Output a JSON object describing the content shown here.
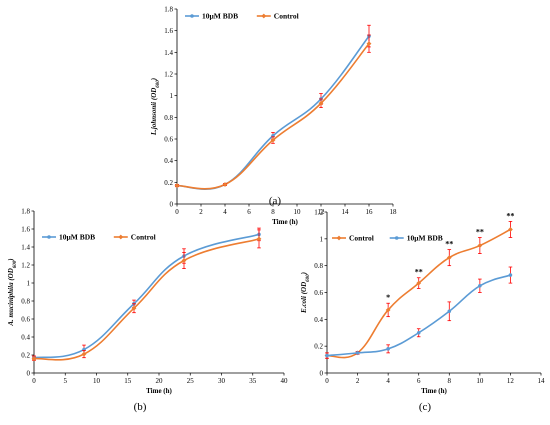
{
  "colors": {
    "bdb": "#5b9bd5",
    "control": "#ed7d31",
    "error": "#ff0000",
    "axis": "#000000"
  },
  "chart_data": [
    {
      "id": "a",
      "type": "line",
      "caption": "(a)",
      "xlabel": "Time (h)",
      "ylabel": "L.johnsonii (OD600)",
      "xlim": [
        0,
        18
      ],
      "ylim": [
        0,
        1.8
      ],
      "xticks": [
        "0",
        "2",
        "4",
        "6",
        "8",
        "10",
        "12",
        "14",
        "16",
        "18"
      ],
      "yticks": [
        "0",
        "0.2",
        "0.4",
        "0.6",
        "0.8",
        "1",
        "1.2",
        "1.4",
        "1.6",
        "1.8"
      ],
      "legend": "top-left",
      "x": [
        0,
        4,
        8,
        12,
        16
      ],
      "series": [
        {
          "name": "10μM BDB",
          "key": "bdb",
          "values": [
            0.17,
            0.18,
            0.63,
            0.97,
            1.55
          ],
          "err": [
            0.01,
            0.01,
            0.03,
            0.05,
            0.1
          ]
        },
        {
          "name": "Control",
          "key": "control",
          "values": [
            0.17,
            0.18,
            0.59,
            0.93,
            1.48
          ],
          "err": [
            0.01,
            0.01,
            0.03,
            0.04,
            0.08
          ]
        }
      ],
      "annotations": []
    },
    {
      "id": "b",
      "type": "line",
      "caption": "(b)",
      "xlabel": "Time (h)",
      "ylabel": "A. muciniphila (OD600)",
      "xlim": [
        0,
        40
      ],
      "ylim": [
        0,
        1.8
      ],
      "xticks": [
        "0",
        "5",
        "10",
        "15",
        "20",
        "25",
        "30",
        "35",
        "40"
      ],
      "yticks": [
        "0",
        "0.2",
        "0.4",
        "0.6",
        "0.8",
        "1",
        "1.2",
        "1.4",
        "1.6",
        "1.8"
      ],
      "legend": "top-left",
      "x": [
        0,
        8,
        16,
        24,
        36
      ],
      "series": [
        {
          "name": "10μM BDB",
          "key": "bdb",
          "values": [
            0.17,
            0.26,
            0.77,
            1.3,
            1.54
          ],
          "err": [
            0.02,
            0.05,
            0.04,
            0.08,
            0.07
          ]
        },
        {
          "name": "Control",
          "key": "control",
          "values": [
            0.16,
            0.21,
            0.72,
            1.25,
            1.49
          ],
          "err": [
            0.02,
            0.04,
            0.05,
            0.09,
            0.1
          ]
        }
      ],
      "annotations": []
    },
    {
      "id": "c",
      "type": "line",
      "caption": "(c)",
      "xlabel": "Time (h)",
      "ylabel": "E.coli (OD600)",
      "xlim": [
        0,
        14
      ],
      "ylim": [
        0,
        1.2
      ],
      "xticks": [
        "0",
        "2",
        "4",
        "6",
        "8",
        "10",
        "12",
        "14"
      ],
      "yticks": [
        "0",
        "0.2",
        "0.4",
        "0.6",
        "0.8",
        "1",
        "1.2"
      ],
      "legend": "top-left",
      "x": [
        0,
        2,
        4,
        6,
        8,
        10,
        12
      ],
      "series": [
        {
          "name": "Control",
          "key": "control",
          "values": [
            0.13,
            0.15,
            0.47,
            0.67,
            0.86,
            0.95,
            1.07
          ],
          "err": [
            0.02,
            0.01,
            0.05,
            0.04,
            0.06,
            0.06,
            0.06
          ]
        },
        {
          "name": "10μM BDB",
          "key": "bdb",
          "values": [
            0.13,
            0.15,
            0.18,
            0.3,
            0.46,
            0.65,
            0.73
          ],
          "err": [
            0.02,
            0.01,
            0.03,
            0.03,
            0.07,
            0.05,
            0.06
          ]
        }
      ],
      "annotations": [
        {
          "x": 4,
          "label": "*"
        },
        {
          "x": 6,
          "label": "**"
        },
        {
          "x": 8,
          "label": "**"
        },
        {
          "x": 10,
          "label": "**"
        },
        {
          "x": 12,
          "label": "**"
        }
      ]
    }
  ]
}
